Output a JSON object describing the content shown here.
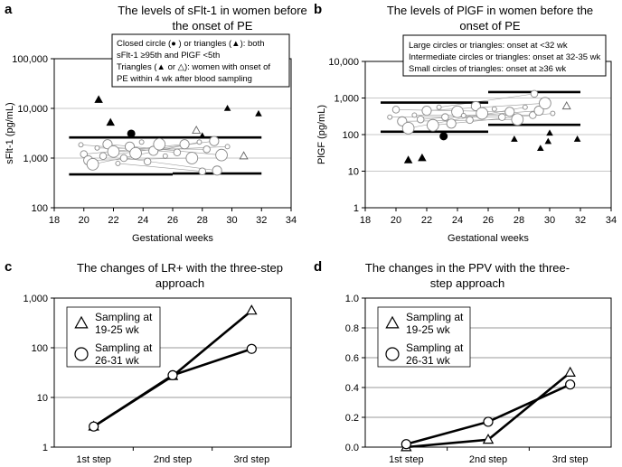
{
  "chart_data": [
    {
      "panel": "a",
      "type": "scatter",
      "title": [
        "The levels of sFlt-1 in women before",
        "the onset of PE"
      ],
      "xlabel": "Gestational weeks",
      "ylabel": "sFlt-1 (pg/mL)",
      "xlim": [
        18,
        34
      ],
      "ylim": [
        100,
        100000
      ],
      "yscale": "log",
      "xticks": [
        18,
        20,
        22,
        24,
        26,
        28,
        30,
        32,
        34
      ],
      "yticks": [
        100,
        1000,
        10000,
        100000
      ],
      "ytick_labels": [
        "100",
        "1,000",
        "10,000",
        "100,000"
      ],
      "annotation": [
        "Closed circle (● ) or triangles (▲): both",
        "sFlt-1 ≥95th and PlGF <5th",
        "Triangles (▲ or △): women with onset of",
        "PE within 4 wk after blood sampling"
      ],
      "ref_lines": [
        {
          "x": [
            19,
            26
          ],
          "y": 2600
        },
        {
          "x": [
            26,
            32
          ],
          "y": 2600
        },
        {
          "x": [
            19,
            26
          ],
          "y": 470
        },
        {
          "x": [
            26,
            32
          ],
          "y": 490
        }
      ],
      "filled_triangles": [
        {
          "x": 21.0,
          "y": 15000
        },
        {
          "x": 21.8,
          "y": 5200
        },
        {
          "x": 29.7,
          "y": 10000
        },
        {
          "x": 31.8,
          "y": 7800
        },
        {
          "x": 28.0,
          "y": 2800
        }
      ],
      "open_triangles": [
        {
          "x": 27.6,
          "y": 3600
        },
        {
          "x": 30.8,
          "y": 1100
        }
      ],
      "filled_circles": [
        {
          "x": 23.2,
          "y": 3100
        }
      ],
      "open_circles": [
        {
          "x": 19.8,
          "y": 1850
        },
        {
          "x": 20.0,
          "y": 1200
        },
        {
          "x": 20.3,
          "y": 900
        },
        {
          "x": 20.6,
          "y": 750
        },
        {
          "x": 20.9,
          "y": 1600
        },
        {
          "x": 21.3,
          "y": 1100
        },
        {
          "x": 21.6,
          "y": 1900
        },
        {
          "x": 22.0,
          "y": 1350
        },
        {
          "x": 22.3,
          "y": 780
        },
        {
          "x": 22.7,
          "y": 1000
        },
        {
          "x": 23.1,
          "y": 1700
        },
        {
          "x": 23.5,
          "y": 1250
        },
        {
          "x": 23.9,
          "y": 2100
        },
        {
          "x": 24.3,
          "y": 850
        },
        {
          "x": 24.7,
          "y": 1400
        },
        {
          "x": 25.1,
          "y": 1900
        },
        {
          "x": 25.5,
          "y": 1100
        },
        {
          "x": 26.3,
          "y": 1300
        },
        {
          "x": 26.8,
          "y": 1900
        },
        {
          "x": 27.3,
          "y": 1000
        },
        {
          "x": 27.8,
          "y": 2100
        },
        {
          "x": 28.3,
          "y": 1500
        },
        {
          "x": 28.8,
          "y": 2200
        },
        {
          "x": 29.3,
          "y": 1150
        },
        {
          "x": 29.7,
          "y": 1700
        },
        {
          "x": 28.0,
          "y": 540
        },
        {
          "x": 29.0,
          "y": 560
        }
      ]
    },
    {
      "panel": "b",
      "type": "scatter",
      "title": [
        "The levels of PlGF in women before the",
        "onset of PE"
      ],
      "xlabel": "Gestational weeks",
      "ylabel": "PlGF (pg/mL)",
      "xlim": [
        18,
        34
      ],
      "ylim": [
        1,
        10000
      ],
      "yscale": "log",
      "xticks": [
        18,
        20,
        22,
        24,
        26,
        28,
        30,
        32,
        34
      ],
      "yticks": [
        1,
        10,
        100,
        1000,
        10000
      ],
      "ytick_labels": [
        "1",
        "10",
        "100",
        "1,000",
        "10,000"
      ],
      "annotation": [
        "Large circles or triangles: onset at <32 wk",
        "Intermediate circles or triangles: onset at 32-35 wk",
        "Small circles of triangles: onset at ≥36 wk"
      ],
      "ref_lines": [
        {
          "x": [
            19,
            26
          ],
          "y": 750
        },
        {
          "x": [
            26,
            32
          ],
          "y": 1450
        },
        {
          "x": [
            19,
            26
          ],
          "y": 120
        },
        {
          "x": [
            26,
            32
          ],
          "y": 185
        }
      ],
      "filled_triangles": [
        {
          "x": 20.8,
          "y": 20
        },
        {
          "x": 21.7,
          "y": 23
        },
        {
          "x": 27.7,
          "y": 75
        },
        {
          "x": 29.4,
          "y": 42
        },
        {
          "x": 29.9,
          "y": 65
        },
        {
          "x": 31.8,
          "y": 75
        },
        {
          "x": 30.0,
          "y": 110
        }
      ],
      "open_triangles": [
        {
          "x": 31.1,
          "y": 600
        }
      ],
      "filled_circles": [
        {
          "x": 23.1,
          "y": 90
        }
      ],
      "open_circles": [
        {
          "x": 19.6,
          "y": 300
        },
        {
          "x": 20.0,
          "y": 480
        },
        {
          "x": 20.4,
          "y": 230
        },
        {
          "x": 20.8,
          "y": 150
        },
        {
          "x": 21.2,
          "y": 340
        },
        {
          "x": 21.6,
          "y": 260
        },
        {
          "x": 22.0,
          "y": 450
        },
        {
          "x": 22.4,
          "y": 180
        },
        {
          "x": 22.8,
          "y": 560
        },
        {
          "x": 23.2,
          "y": 300
        },
        {
          "x": 23.6,
          "y": 200
        },
        {
          "x": 24.0,
          "y": 420
        },
        {
          "x": 24.4,
          "y": 330
        },
        {
          "x": 24.8,
          "y": 250
        },
        {
          "x": 25.2,
          "y": 600
        },
        {
          "x": 25.6,
          "y": 380
        },
        {
          "x": 26.4,
          "y": 500
        },
        {
          "x": 26.9,
          "y": 300
        },
        {
          "x": 27.4,
          "y": 420
        },
        {
          "x": 27.9,
          "y": 260
        },
        {
          "x": 28.4,
          "y": 560
        },
        {
          "x": 28.9,
          "y": 340
        },
        {
          "x": 29.3,
          "y": 450
        },
        {
          "x": 29.7,
          "y": 720
        },
        {
          "x": 30.2,
          "y": 380
        },
        {
          "x": 29.0,
          "y": 1300
        }
      ]
    },
    {
      "panel": "c",
      "type": "line",
      "title": [
        "The changes of LR+ with the three-step",
        "approach"
      ],
      "categories": [
        "1st step",
        "2nd step",
        "3rd step"
      ],
      "yscale": "log",
      "ylim": [
        1,
        1000
      ],
      "yticks": [
        1,
        10,
        100,
        1000
      ],
      "ytick_labels": [
        "1",
        "10",
        "100",
        "1,000"
      ],
      "series": [
        {
          "name": [
            "Sampling at",
            "19-25 wk"
          ],
          "marker": "triangle",
          "values": [
            2.6,
            27,
            560
          ]
        },
        {
          "name": [
            "Sampling at",
            "26-31 wk"
          ],
          "marker": "circle",
          "values": [
            2.6,
            28,
            95
          ]
        }
      ]
    },
    {
      "panel": "d",
      "type": "line",
      "title": [
        "The changes in the PPV with the three-",
        "step approach"
      ],
      "categories": [
        "1st step",
        "2nd step",
        "3rd step"
      ],
      "yscale": "linear",
      "ylim": [
        0,
        1.0
      ],
      "yticks": [
        0,
        0.2,
        0.4,
        0.6,
        0.8,
        1.0
      ],
      "ytick_labels": [
        "0.0",
        "0.2",
        "0.4",
        "0.6",
        "0.8",
        "1.0"
      ],
      "series": [
        {
          "name": [
            "Sampling at",
            "19-25 wk"
          ],
          "marker": "triangle",
          "values": [
            0.0,
            0.05,
            0.5
          ]
        },
        {
          "name": [
            "Sampling at",
            "26-31 wk"
          ],
          "marker": "circle",
          "values": [
            0.02,
            0.17,
            0.42
          ]
        }
      ]
    }
  ]
}
